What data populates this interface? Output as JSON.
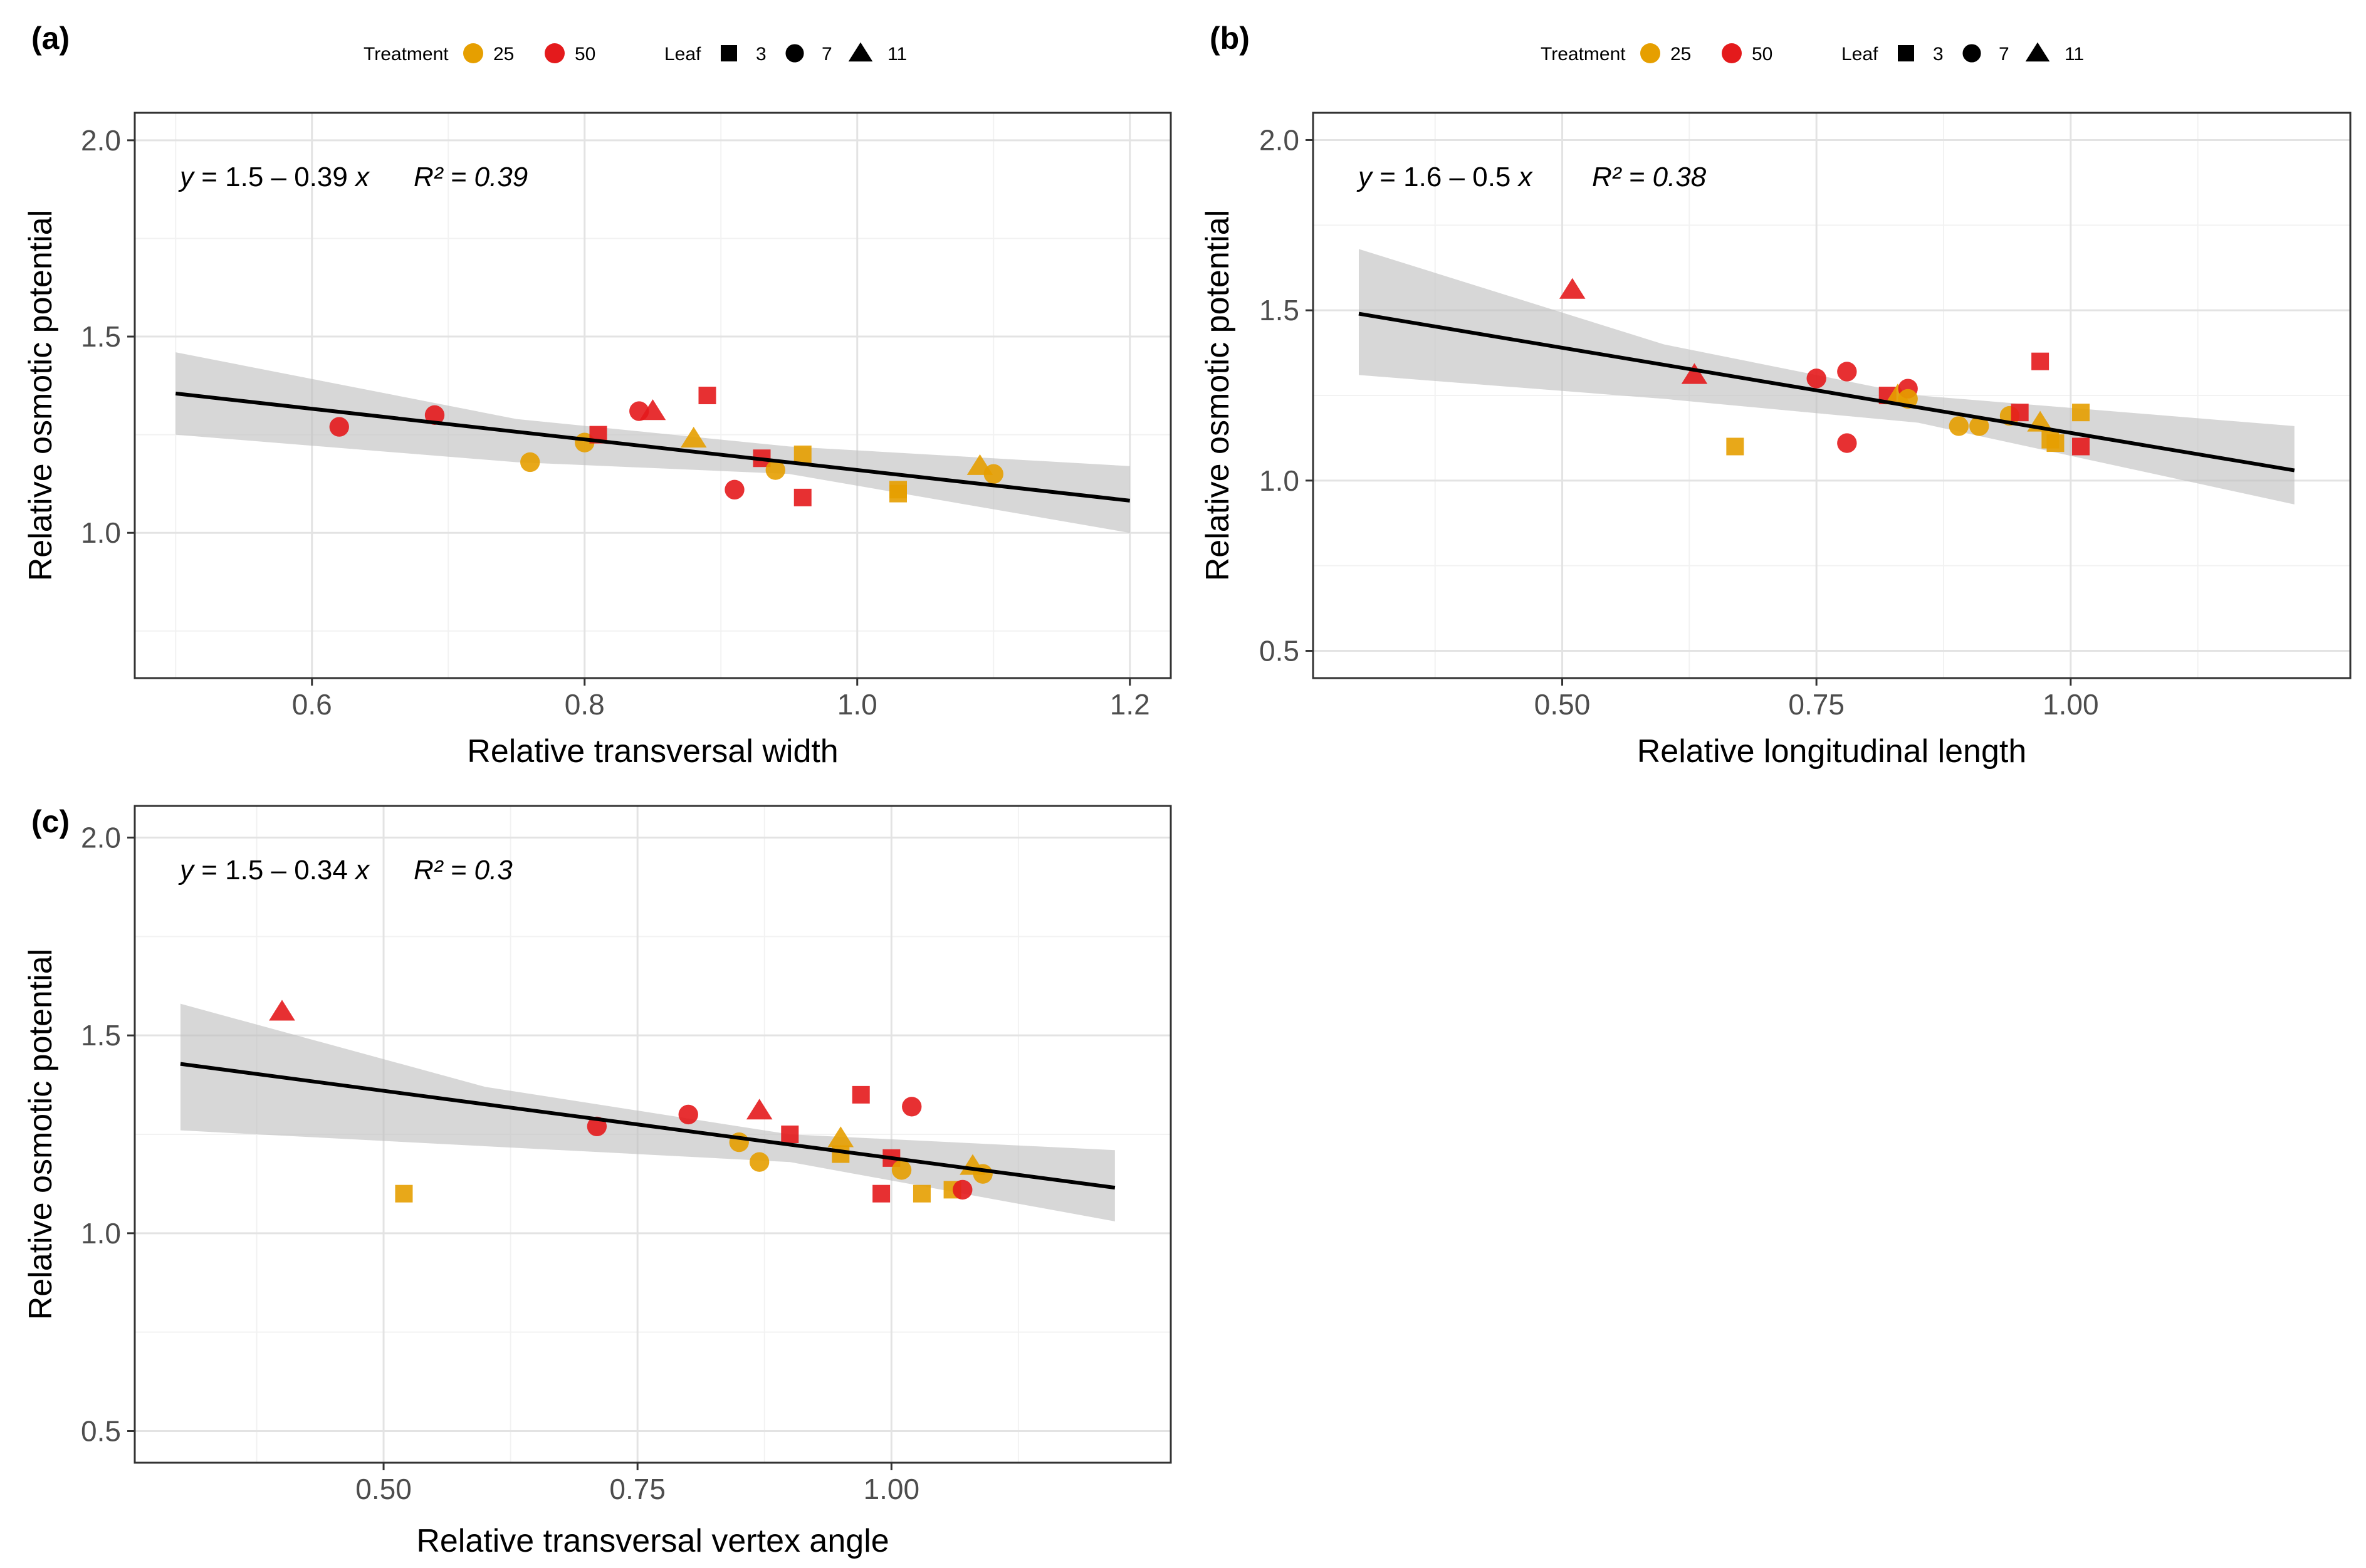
{
  "legend": {
    "treatment_title": "Treatment",
    "leaf_title": "Leaf",
    "treatment_levels": [
      {
        "label": "25",
        "color": "#E69F00"
      },
      {
        "label": "50",
        "color": "#E41A1C"
      }
    ],
    "leaf_levels": [
      {
        "label": "3",
        "shape": "square"
      },
      {
        "label": "7",
        "shape": "circle"
      },
      {
        "label": "11",
        "shape": "triangle"
      }
    ]
  },
  "chart_data": [
    {
      "panel": "(a)",
      "type": "scatter",
      "xlabel": "Relative transversal width",
      "ylabel": "Relative osmotic potential",
      "xlim": [
        0.47,
        1.23
      ],
      "ylim": [
        0.63,
        2.07
      ],
      "xticks": [
        0.6,
        0.8,
        1.0,
        1.2
      ],
      "xtick_labels": [
        "0.6",
        "0.8",
        "1.0",
        "1.2"
      ],
      "yticks": [
        1.0,
        1.5,
        2.0
      ],
      "ytick_labels": [
        "1.0",
        "1.5",
        "2.0"
      ],
      "equation": "y = 1.5 – 0.39 x",
      "r2": "R² = 0.39",
      "fit": {
        "intercept": 1.55,
        "slope": -0.39,
        "x_range": [
          0.5,
          1.2
        ]
      },
      "band": [
        [
          0.5,
          1.25,
          1.46
        ],
        [
          0.75,
          1.18,
          1.29
        ],
        [
          0.95,
          1.15,
          1.22
        ],
        [
          1.2,
          1.0,
          1.17
        ]
      ],
      "points": [
        {
          "x": 0.62,
          "y": 1.27,
          "t": "50",
          "l": "7"
        },
        {
          "x": 0.69,
          "y": 1.3,
          "t": "50",
          "l": "7"
        },
        {
          "x": 0.76,
          "y": 1.18,
          "t": "25",
          "l": "7"
        },
        {
          "x": 0.8,
          "y": 1.23,
          "t": "25",
          "l": "7"
        },
        {
          "x": 0.81,
          "y": 1.25,
          "t": "50",
          "l": "3"
        },
        {
          "x": 0.84,
          "y": 1.31,
          "t": "50",
          "l": "7"
        },
        {
          "x": 0.85,
          "y": 1.31,
          "t": "50",
          "l": "11"
        },
        {
          "x": 0.88,
          "y": 1.24,
          "t": "25",
          "l": "11"
        },
        {
          "x": 0.89,
          "y": 1.35,
          "t": "50",
          "l": "3"
        },
        {
          "x": 0.91,
          "y": 1.11,
          "t": "50",
          "l": "7"
        },
        {
          "x": 0.93,
          "y": 1.19,
          "t": "50",
          "l": "3"
        },
        {
          "x": 0.94,
          "y": 1.16,
          "t": "25",
          "l": "7"
        },
        {
          "x": 0.96,
          "y": 1.09,
          "t": "50",
          "l": "3"
        },
        {
          "x": 0.96,
          "y": 1.2,
          "t": "25",
          "l": "3"
        },
        {
          "x": 1.03,
          "y": 1.11,
          "t": "25",
          "l": "3"
        },
        {
          "x": 1.03,
          "y": 1.1,
          "t": "25",
          "l": "3"
        },
        {
          "x": 1.09,
          "y": 1.17,
          "t": "25",
          "l": "11"
        },
        {
          "x": 1.1,
          "y": 1.15,
          "t": "25",
          "l": "7"
        }
      ]
    },
    {
      "panel": "(b)",
      "type": "scatter",
      "xlabel": "Relative longitudinal length",
      "ylabel": "Relative osmotic potential",
      "xlim": [
        0.255,
        1.275
      ],
      "ylim": [
        0.42,
        2.08
      ],
      "xticks": [
        0.5,
        0.75,
        1.0
      ],
      "xtick_labels": [
        "0.50",
        "0.75",
        "1.00"
      ],
      "yticks": [
        0.5,
        1.0,
        1.5,
        2.0
      ],
      "ytick_labels": [
        "0.5",
        "1.0",
        "1.5",
        "2.0"
      ],
      "equation": "y = 1.6 – 0.5 x",
      "r2": "R² = 0.38",
      "fit": {
        "intercept": 1.64,
        "slope": -0.5,
        "x_range": [
          0.3,
          1.22
        ]
      },
      "band": [
        [
          0.3,
          1.31,
          1.68
        ],
        [
          0.6,
          1.24,
          1.4
        ],
        [
          0.85,
          1.17,
          1.25
        ],
        [
          1.22,
          0.93,
          1.16
        ]
      ],
      "points": [
        {
          "x": 0.51,
          "y": 1.56,
          "t": "50",
          "l": "11"
        },
        {
          "x": 0.63,
          "y": 1.31,
          "t": "50",
          "l": "11"
        },
        {
          "x": 0.67,
          "y": 1.1,
          "t": "25",
          "l": "3"
        },
        {
          "x": 0.75,
          "y": 1.3,
          "t": "50",
          "l": "7"
        },
        {
          "x": 0.78,
          "y": 1.32,
          "t": "50",
          "l": "7"
        },
        {
          "x": 0.78,
          "y": 1.11,
          "t": "50",
          "l": "7"
        },
        {
          "x": 0.82,
          "y": 1.25,
          "t": "50",
          "l": "3"
        },
        {
          "x": 0.83,
          "y": 1.25,
          "t": "25",
          "l": "11"
        },
        {
          "x": 0.84,
          "y": 1.27,
          "t": "50",
          "l": "7"
        },
        {
          "x": 0.84,
          "y": 1.24,
          "t": "25",
          "l": "7"
        },
        {
          "x": 0.89,
          "y": 1.16,
          "t": "25",
          "l": "7"
        },
        {
          "x": 0.91,
          "y": 1.16,
          "t": "25",
          "l": "7"
        },
        {
          "x": 0.94,
          "y": 1.19,
          "t": "25",
          "l": "7"
        },
        {
          "x": 0.95,
          "y": 1.2,
          "t": "50",
          "l": "3"
        },
        {
          "x": 0.97,
          "y": 1.35,
          "t": "50",
          "l": "3"
        },
        {
          "x": 0.97,
          "y": 1.17,
          "t": "25",
          "l": "11"
        },
        {
          "x": 0.98,
          "y": 1.12,
          "t": "25",
          "l": "3"
        },
        {
          "x": 0.985,
          "y": 1.11,
          "t": "25",
          "l": "3"
        },
        {
          "x": 1.01,
          "y": 1.2,
          "t": "25",
          "l": "3"
        },
        {
          "x": 1.01,
          "y": 1.1,
          "t": "50",
          "l": "3"
        }
      ]
    },
    {
      "panel": "(c)",
      "type": "scatter",
      "xlabel": "Relative transversal vertex angle",
      "ylabel": "Relative osmotic potential",
      "xlim": [
        0.255,
        1.275
      ],
      "ylim": [
        0.42,
        2.08
      ],
      "xticks": [
        0.5,
        0.75,
        1.0
      ],
      "xtick_labels": [
        "0.50",
        "0.75",
        "1.00"
      ],
      "yticks": [
        0.5,
        1.0,
        1.5,
        2.0
      ],
      "ytick_labels": [
        "0.5",
        "1.0",
        "1.5",
        "2.0"
      ],
      "equation": "y = 1.5 – 0.34 x",
      "r2": "R² = 0.3",
      "fit": {
        "intercept": 1.53,
        "slope": -0.34,
        "x_range": [
          0.3,
          1.22
        ]
      },
      "band": [
        [
          0.3,
          1.26,
          1.58
        ],
        [
          0.6,
          1.22,
          1.37
        ],
        [
          0.9,
          1.18,
          1.25
        ],
        [
          1.22,
          1.03,
          1.21
        ]
      ],
      "points": [
        {
          "x": 0.4,
          "y": 1.56,
          "t": "50",
          "l": "11"
        },
        {
          "x": 0.52,
          "y": 1.1,
          "t": "25",
          "l": "3"
        },
        {
          "x": 0.71,
          "y": 1.27,
          "t": "50",
          "l": "7"
        },
        {
          "x": 0.8,
          "y": 1.3,
          "t": "50",
          "l": "7"
        },
        {
          "x": 0.85,
          "y": 1.23,
          "t": "25",
          "l": "7"
        },
        {
          "x": 0.87,
          "y": 1.31,
          "t": "50",
          "l": "11"
        },
        {
          "x": 0.87,
          "y": 1.18,
          "t": "25",
          "l": "7"
        },
        {
          "x": 0.9,
          "y": 1.25,
          "t": "50",
          "l": "3"
        },
        {
          "x": 0.95,
          "y": 1.24,
          "t": "25",
          "l": "11"
        },
        {
          "x": 0.95,
          "y": 1.2,
          "t": "25",
          "l": "3"
        },
        {
          "x": 0.97,
          "y": 1.35,
          "t": "50",
          "l": "3"
        },
        {
          "x": 0.99,
          "y": 1.1,
          "t": "50",
          "l": "3"
        },
        {
          "x": 1.0,
          "y": 1.19,
          "t": "50",
          "l": "3"
        },
        {
          "x": 1.01,
          "y": 1.16,
          "t": "25",
          "l": "7"
        },
        {
          "x": 1.02,
          "y": 1.32,
          "t": "50",
          "l": "7"
        },
        {
          "x": 1.03,
          "y": 1.1,
          "t": "25",
          "l": "3"
        },
        {
          "x": 1.06,
          "y": 1.11,
          "t": "25",
          "l": "3"
        },
        {
          "x": 1.07,
          "y": 1.11,
          "t": "50",
          "l": "7"
        },
        {
          "x": 1.08,
          "y": 1.17,
          "t": "25",
          "l": "11"
        },
        {
          "x": 1.09,
          "y": 1.15,
          "t": "25",
          "l": "7"
        }
      ]
    }
  ]
}
